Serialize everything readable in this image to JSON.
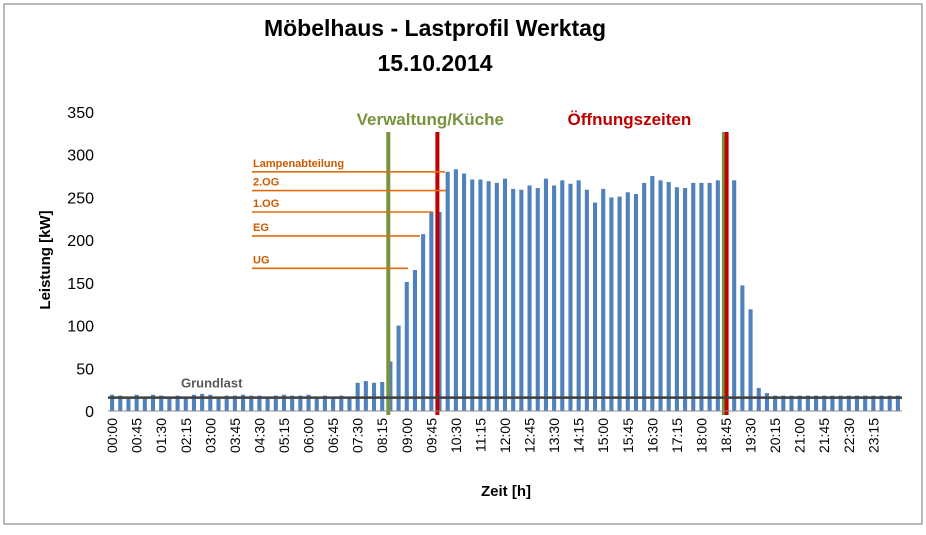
{
  "chart_data": {
    "type": "bar",
    "title": "Möbelhaus - Lastprofil Werktag",
    "subtitle": "15.10.2014",
    "xlabel": "Zeit [h]",
    "ylabel": "Leistung [kW]",
    "ylim": [
      0,
      350
    ],
    "y_ticks": [
      "0",
      "50",
      "100",
      "150",
      "200",
      "250",
      "300",
      "350"
    ],
    "grid": false,
    "legend": "none",
    "x_tick_labels": [
      "00:00",
      "00:45",
      "01:30",
      "02:15",
      "03:00",
      "03:45",
      "04:30",
      "05:15",
      "06:00",
      "06:45",
      "07:30",
      "08:15",
      "09:00",
      "09:45",
      "10:30",
      "11:15",
      "12:00",
      "12:45",
      "13:30",
      "14:15",
      "15:00",
      "15:45",
      "16:30",
      "17:15",
      "18:00",
      "18:45",
      "19:30",
      "20:15",
      "21:00",
      "21:45",
      "22:30",
      "23:15"
    ],
    "interval_minutes": 15,
    "start_time": "00:00",
    "values": [
      19,
      18,
      16,
      19,
      17,
      19,
      18,
      17,
      18,
      16,
      19,
      20,
      19,
      17,
      18,
      18,
      19,
      18,
      18,
      17,
      18,
      19,
      18,
      18,
      19,
      17,
      18,
      17,
      18,
      17,
      33,
      35,
      33,
      34,
      58,
      100,
      151,
      165,
      207,
      233,
      233,
      280,
      283,
      278,
      271,
      271,
      269,
      267,
      272,
      260,
      259,
      264,
      261,
      272,
      264,
      270,
      266,
      270,
      259,
      244,
      260,
      250,
      251,
      256,
      254,
      267,
      275,
      270,
      268,
      262,
      261,
      267,
      267,
      267,
      270,
      266,
      270,
      147,
      119,
      27,
      21,
      18,
      18,
      18,
      18,
      18,
      18,
      18,
      18,
      18,
      18,
      18,
      18,
      18,
      18,
      18,
      18
    ],
    "bar_color": "#4f81bd",
    "reference_lines": [
      {
        "label": "Grundlast",
        "value": 18,
        "color": "#404040"
      }
    ],
    "zone_markers": [
      {
        "label": "Verwaltung/Küche",
        "time": "08:30",
        "color": "#77933c"
      },
      {
        "label": "Öffnungszeiten",
        "time": "10:00",
        "color": "#c00000"
      },
      {
        "label": "",
        "time": "18:45",
        "color": "#77933c"
      },
      {
        "label": "",
        "time": "18:50",
        "color": "#c00000"
      }
    ],
    "level_annotations": [
      {
        "label": "Lampenabteilung",
        "value": 280
      },
      {
        "label": "2.OG",
        "value": 258
      },
      {
        "label": "1.OG",
        "value": 233
      },
      {
        "label": "EG",
        "value": 205
      },
      {
        "label": "UG",
        "value": 167
      }
    ],
    "annotation_color": "#e46c0a"
  }
}
